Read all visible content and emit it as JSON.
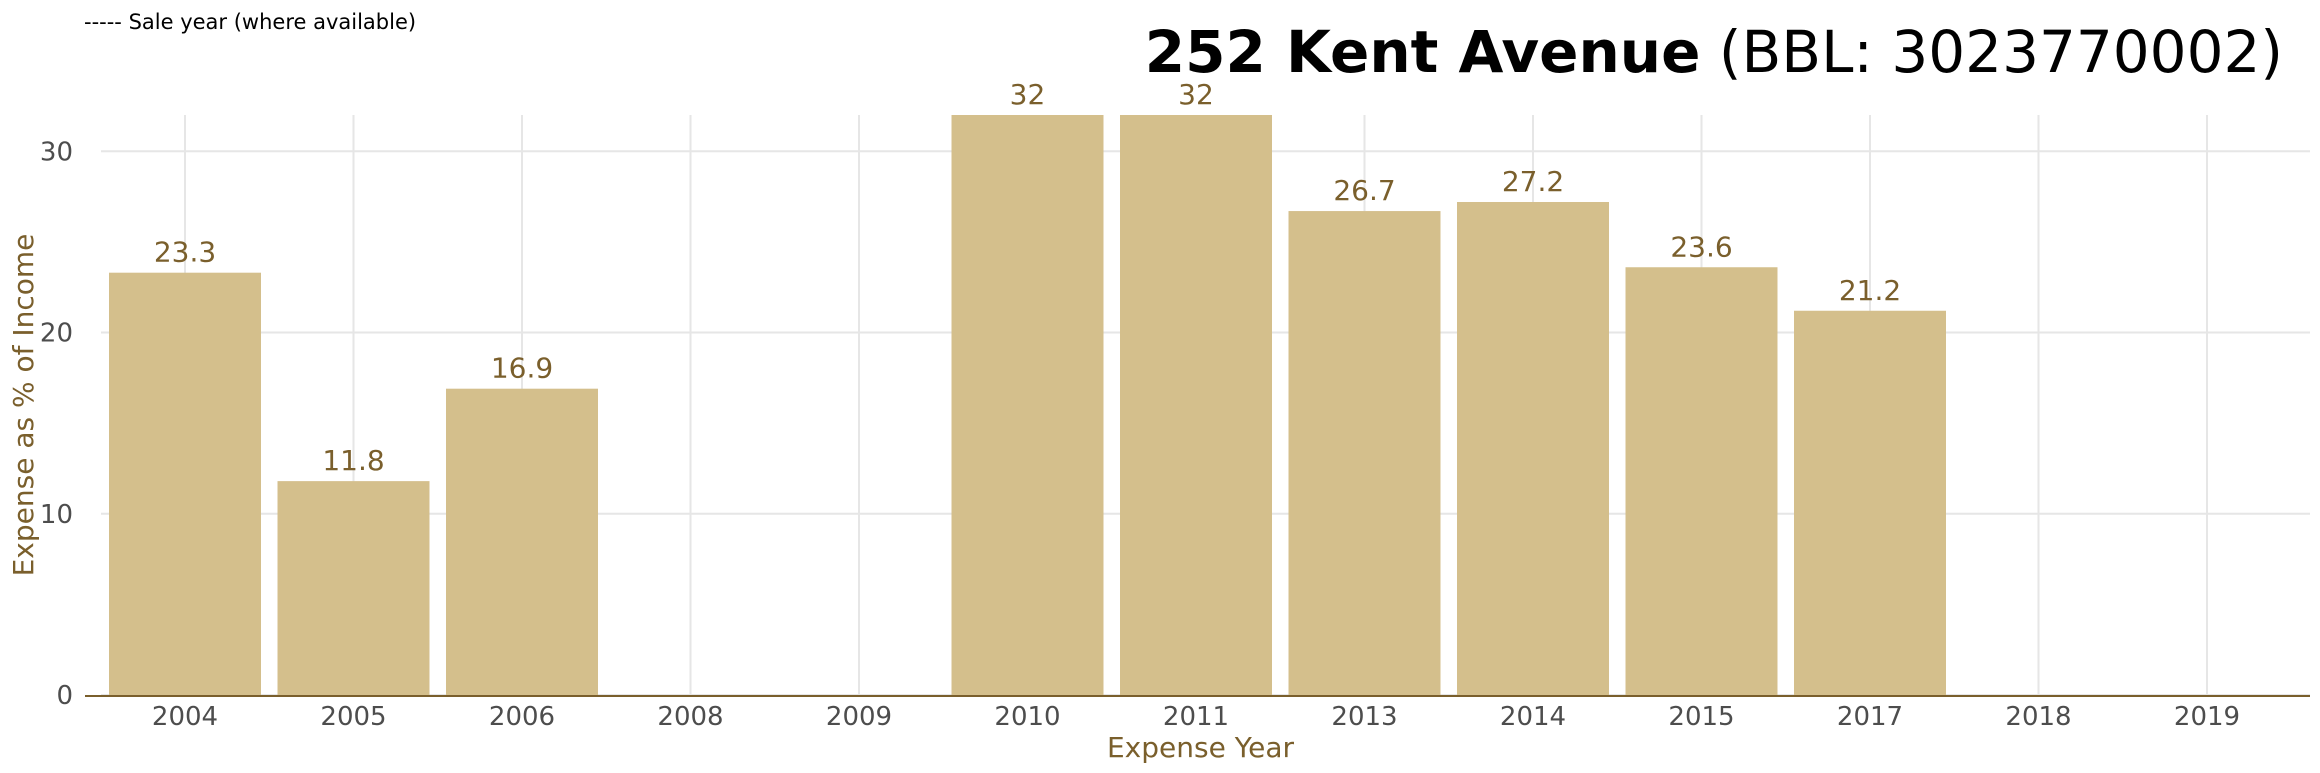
{
  "legend_note": "----- Sale year (where available)",
  "title": {
    "address": "252 Kent Avenue",
    "bbl": "(BBL: 3023770002)"
  },
  "colors": {
    "bar": "#d4bf8c",
    "axis_text": "#7a5f2c",
    "grid": "#e6e6e6",
    "baseline": "#7a5f2c"
  },
  "chart_data": {
    "type": "bar",
    "categories": [
      "2004",
      "2005",
      "2006",
      "2008",
      "2009",
      "2010",
      "2011",
      "2013",
      "2014",
      "2015",
      "2017",
      "2018",
      "2019"
    ],
    "values": [
      23.3,
      11.8,
      16.9,
      null,
      null,
      32,
      32,
      26.7,
      27.2,
      23.6,
      21.2,
      null,
      null
    ],
    "value_labels": [
      "23.3",
      "11.8",
      "16.9",
      "",
      "",
      "32",
      "32",
      "26.7",
      "27.2",
      "23.6",
      "21.2",
      "",
      ""
    ],
    "xlabel": "Expense Year",
    "ylabel": "Expense as % of Income",
    "ylim": [
      0,
      32
    ],
    "yticks": [
      0,
      10,
      20,
      30
    ],
    "grid": true
  }
}
